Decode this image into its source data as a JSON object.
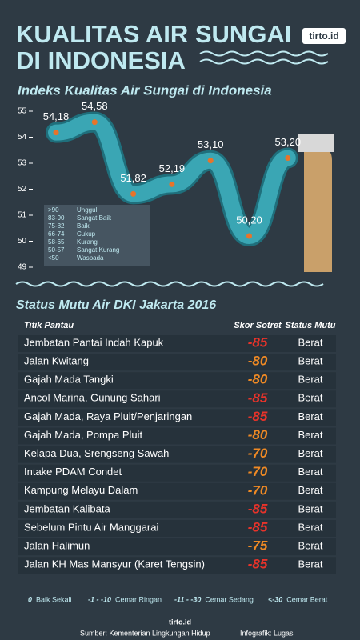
{
  "header": {
    "title_lines": [
      "KUALITAS AIR SUNGAI",
      "DI INDONESIA"
    ],
    "brand": "tirto.id"
  },
  "chart_data": {
    "type": "line",
    "title": "Indeks Kualitas Air Sungai di Indonesia",
    "categories": [
      null,
      null,
      null,
      null,
      null,
      null,
      null
    ],
    "values": [
      54.18,
      54.58,
      51.82,
      52.19,
      53.1,
      50.2,
      53.2
    ],
    "value_labels": [
      "54,18",
      "54,58",
      "51,82",
      "52,19",
      "53,10",
      "50,20",
      "53,20"
    ],
    "color": "#3aa6b4",
    "marker_color": "#e8742a",
    "ylim": [
      49,
      55
    ],
    "yticks": [
      49,
      50,
      51,
      52,
      53,
      54,
      55
    ],
    "legend": [
      [
        ">90",
        "Unggul"
      ],
      [
        "83-90",
        "Sangat Baik"
      ],
      [
        "75-82",
        "Baik"
      ],
      [
        "66-74",
        "Cukup"
      ],
      [
        "58-65",
        "Kurang"
      ],
      [
        "50-57",
        "Sangat Kurang"
      ],
      [
        "<50",
        "Waspada"
      ]
    ]
  },
  "table": {
    "title": "Status Mutu Air DKI Jakarta 2016",
    "headers": [
      "Titik Pantau",
      "Skor Sotret",
      "Status Mutu"
    ],
    "rows": [
      [
        "Jembatan Pantai Indah Kapuk",
        -85,
        "Berat"
      ],
      [
        "Jalan Kwitang",
        -80,
        "Berat"
      ],
      [
        "Gajah Mada Tangki",
        -80,
        "Berat"
      ],
      [
        "Ancol Marina, Gunung Sahari",
        -85,
        "Berat"
      ],
      [
        "Gajah Mada, Raya Pluit/Penjaringan",
        -85,
        "Berat"
      ],
      [
        "Gajah Mada, Pompa Pluit",
        -80,
        "Berat"
      ],
      [
        "Kelapa Dua, Srengseng Sawah",
        -70,
        "Berat"
      ],
      [
        "Intake PDAM Condet",
        -70,
        "Berat"
      ],
      [
        "Kampung Melayu Dalam",
        -70,
        "Berat"
      ],
      [
        "Jembatan Kalibata",
        -85,
        "Berat"
      ],
      [
        "Sebelum Pintu Air Manggarai",
        -85,
        "Berat"
      ],
      [
        "Jalan Halimun",
        -75,
        "Berat"
      ],
      [
        "Jalan KH Mas Mansyur (Karet Tengsin)",
        -85,
        "Berat"
      ]
    ],
    "legend": [
      [
        "0",
        "Baik Sekali"
      ],
      [
        "-1 - -10",
        "Cemar Ringan"
      ],
      [
        "-11 - -30",
        "Cemar Sedang"
      ],
      [
        "<-30",
        "Cemar Berat"
      ]
    ]
  },
  "footer": {
    "brand": "tirto.id",
    "source": "Sumber: Kementerian Lingkungan Hidup",
    "credit": "Infografik: Lugas"
  }
}
